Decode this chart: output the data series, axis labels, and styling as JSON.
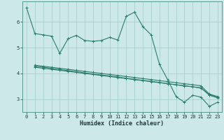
{
  "xlabel": "Humidex (Indice chaleur)",
  "bg_color": "#cce8e8",
  "grid_color": "#aacece",
  "line_color": "#2a7d6e",
  "xlim": [
    -0.5,
    23.5
  ],
  "ylim": [
    2.5,
    6.8
  ],
  "yticks": [
    3,
    4,
    5,
    6
  ],
  "xticks": [
    0,
    1,
    2,
    3,
    4,
    5,
    6,
    7,
    8,
    9,
    10,
    11,
    12,
    13,
    14,
    15,
    16,
    17,
    18,
    19,
    20,
    21,
    22,
    23
  ],
  "line1_x": [
    0,
    1,
    2,
    3,
    4,
    5,
    6,
    7,
    8,
    9,
    10,
    11,
    12,
    13,
    14,
    15,
    16,
    17,
    18,
    19,
    20,
    21,
    22,
    23
  ],
  "line1_y": [
    6.55,
    5.55,
    5.5,
    5.45,
    4.78,
    5.35,
    5.48,
    5.28,
    5.25,
    5.28,
    5.4,
    5.3,
    6.22,
    6.38,
    5.82,
    5.5,
    4.35,
    3.75,
    3.1,
    2.88,
    3.15,
    3.08,
    2.72,
    2.88
  ],
  "line2_x": [
    1,
    2,
    3,
    4,
    5,
    6,
    7,
    8,
    9,
    10,
    11,
    12,
    13,
    14,
    15,
    16,
    17,
    18,
    19,
    20,
    21,
    22,
    23
  ],
  "line2_y": [
    4.32,
    4.28,
    4.24,
    4.2,
    4.16,
    4.12,
    4.08,
    4.04,
    4.0,
    3.96,
    3.92,
    3.88,
    3.84,
    3.8,
    3.76,
    3.72,
    3.68,
    3.64,
    3.6,
    3.56,
    3.52,
    3.2,
    3.1
  ],
  "line3_x": [
    1,
    2,
    3,
    4,
    5,
    6,
    7,
    8,
    9,
    10,
    11,
    12,
    13,
    14,
    15,
    16,
    17,
    18,
    19,
    20,
    21,
    22,
    23
  ],
  "line3_y": [
    4.28,
    4.24,
    4.2,
    4.15,
    4.11,
    4.07,
    4.02,
    3.98,
    3.94,
    3.9,
    3.86,
    3.81,
    3.77,
    3.73,
    3.69,
    3.65,
    3.6,
    3.56,
    3.52,
    3.48,
    3.43,
    3.18,
    3.08
  ],
  "line4_x": [
    1,
    2,
    3,
    4,
    5,
    6,
    7,
    8,
    9,
    10,
    11,
    12,
    13,
    14,
    15,
    16,
    17,
    18,
    19,
    20,
    21,
    22,
    23
  ],
  "line4_y": [
    4.24,
    4.2,
    4.16,
    4.12,
    4.08,
    4.04,
    4.0,
    3.96,
    3.92,
    3.88,
    3.84,
    3.8,
    3.76,
    3.72,
    3.68,
    3.64,
    3.6,
    3.56,
    3.52,
    3.48,
    3.44,
    3.15,
    3.05
  ]
}
